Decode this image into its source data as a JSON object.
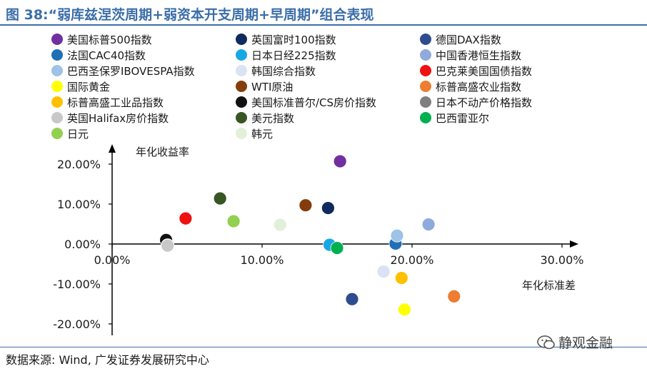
{
  "title": "图 38:“弱库兹涅茨周期+弱资本开支周期+早周期”组合表现",
  "source": "数据来源: Wind, 广发证券发展研究中心",
  "watermark": "静观金融",
  "colors": {
    "title": "#3b6ea8",
    "axis": "#000000"
  },
  "chart_data": {
    "type": "scatter",
    "ylabel": "年化收益率",
    "xlabel": "年化标准差",
    "xlim": [
      0,
      0.3
    ],
    "ylim": [
      -0.2,
      0.2
    ],
    "x_ticks": [
      "0.00%",
      "10.00%",
      "20.00%",
      "30.00%"
    ],
    "y_ticks": [
      "20.00%",
      "10.00%",
      "0.00%",
      "-10.00%",
      "-20.00%"
    ],
    "grid": false,
    "legend_position": "top",
    "series": [
      {
        "name": "美国标普500指数",
        "color": "#7030a0",
        "x": 0.152,
        "y": 0.207
      },
      {
        "name": "英国富时100指数",
        "color": "#0f2a5e",
        "x": 0.144,
        "y": 0.09
      },
      {
        "name": "德国DAX指数",
        "color": "#2f4d8c",
        "x": 0.16,
        "y": -0.138
      },
      {
        "name": "法国CAC40指数",
        "color": "#1f6fb8",
        "x": 0.189,
        "y": 0.001
      },
      {
        "name": "日本日经225指数",
        "color": "#19a7e6",
        "x": 0.145,
        "y": -0.002
      },
      {
        "name": "中国香港恒生指数",
        "color": "#8faadc",
        "x": 0.211,
        "y": 0.049
      },
      {
        "name": "巴西圣保罗IBOVESPA指数",
        "color": "#9dc3e6",
        "x": 0.19,
        "y": 0.021
      },
      {
        "name": "韩国综合指数",
        "color": "#dae3f3",
        "x": 0.181,
        "y": -0.069
      },
      {
        "name": "巴克莱美国国债指数",
        "color": "#ee1111",
        "x": 0.049,
        "y": 0.064
      },
      {
        "name": "国际黄金",
        "color": "#ffff00",
        "x": 0.195,
        "y": -0.164
      },
      {
        "name": "WTI原油",
        "color": "#843c0c",
        "x": 0.129,
        "y": 0.097
      },
      {
        "name": "标普高盛农业指数",
        "color": "#ed7d31",
        "x": 0.228,
        "y": -0.131
      },
      {
        "name": "标普高盛工业品指数",
        "color": "#ffc000",
        "x": 0.193,
        "y": -0.085
      },
      {
        "name": "美国标准普尔/CS房价指数",
        "color": "#111111",
        "x": 0.036,
        "y": 0.01
      },
      {
        "name": "日本不动产价格指数",
        "color": "#7f7f7f",
        "x": 0.037,
        "y": -0.003
      },
      {
        "name": "英国Halifax房价指数",
        "color": "#c8c8c8",
        "x": 0.037,
        "y": -0.004
      },
      {
        "name": "美元指数",
        "color": "#375623",
        "x": 0.072,
        "y": 0.114
      },
      {
        "name": "巴西雷亚尔",
        "color": "#00b050",
        "x": 0.15,
        "y": -0.01
      },
      {
        "name": "日元",
        "color": "#92d050",
        "x": 0.081,
        "y": 0.057
      },
      {
        "name": "韩元",
        "color": "#e2f0d9",
        "x": 0.112,
        "y": 0.048
      }
    ]
  }
}
